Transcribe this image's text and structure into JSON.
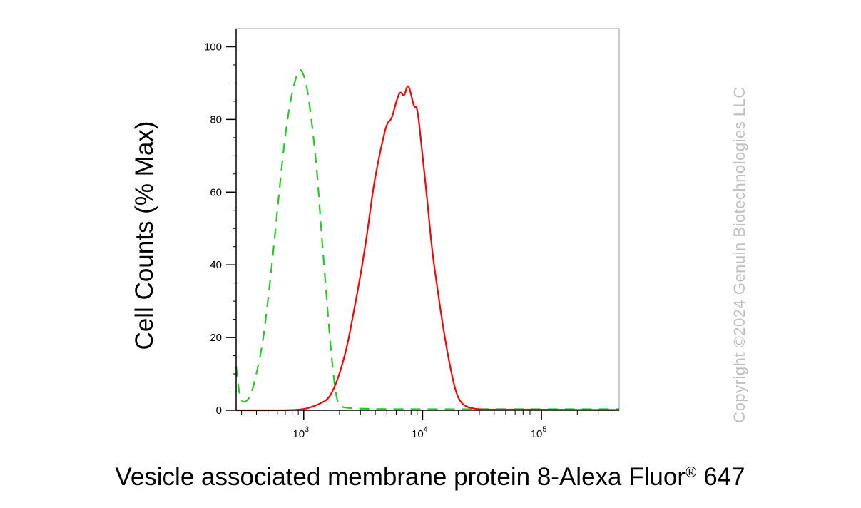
{
  "chart_data": {
    "type": "line",
    "title": "",
    "xlabel": "Vesicle associated membrane protein 8-Alexa Fluor",
    "xlabel_sup": "®",
    "xlabel_suffix": " 647",
    "ylabel": "Cell Counts (% Max)",
    "x_scale": "log",
    "xlim": [
      270,
      450000
    ],
    "ylim": [
      0,
      105
    ],
    "grid": false,
    "legend": "none",
    "yticks": [
      {
        "value": 0,
        "label": "0"
      },
      {
        "value": 20,
        "label": "20"
      },
      {
        "value": 40,
        "label": "40"
      },
      {
        "value": 60,
        "label": "60"
      },
      {
        "value": 80,
        "label": "80"
      },
      {
        "value": 100,
        "label": "100"
      }
    ],
    "xticks": [
      {
        "value": 1000,
        "base": "10",
        "exp": "3"
      },
      {
        "value": 10000,
        "base": "10",
        "exp": "4"
      },
      {
        "value": 100000,
        "base": "10",
        "exp": "5"
      }
    ],
    "series": [
      {
        "color": "#22cc22",
        "dash": "dashed",
        "x": [
          270,
          290,
          320,
          360,
          400,
          450,
          500,
          560,
          630,
          700,
          780,
          850,
          920,
          980,
          1050,
          1120,
          1200,
          1300,
          1400,
          1500,
          1600,
          1700,
          1800,
          1900,
          2000,
          2500,
          5000,
          20000,
          100000,
          450000
        ],
        "y": [
          12,
          3,
          2,
          4,
          10,
          18,
          30,
          45,
          62,
          76,
          86,
          91,
          94,
          93,
          90,
          84,
          76,
          65,
          50,
          38,
          26,
          16,
          8,
          3,
          1,
          0.5,
          0.3,
          0.3,
          0.3,
          0.3
        ]
      },
      {
        "color": "#ff0000",
        "dash": "solid",
        "x": [
          270,
          800,
          1000,
          1200,
          1400,
          1600,
          1800,
          2000,
          2300,
          2600,
          3000,
          3400,
          3800,
          4200,
          4600,
          5000,
          5500,
          6000,
          6500,
          7000,
          7500,
          8000,
          8500,
          9000,
          10000,
          11000,
          12000,
          13500,
          15000,
          17000,
          19000,
          21000,
          24000,
          28000,
          32000,
          40000,
          60000,
          100000,
          200000,
          450000
        ],
        "y": [
          0,
          0,
          0.3,
          1,
          2,
          3,
          6,
          10,
          17,
          26,
          37,
          48,
          60,
          68,
          74,
          79,
          80,
          85,
          88,
          86,
          90,
          87,
          83,
          84,
          70,
          57,
          44,
          32,
          22,
          12,
          5,
          2,
          0.8,
          0.4,
          0.2,
          0.2,
          0.2,
          0.2,
          0.1,
          0.1
        ]
      }
    ]
  },
  "watermark": "Copyright ©2024 Genuin Biotechnologies LLC"
}
